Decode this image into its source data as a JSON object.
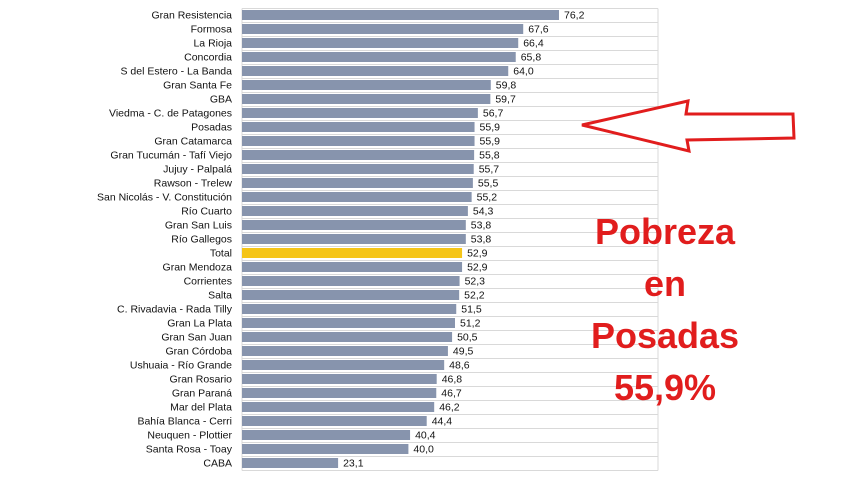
{
  "chart_data": {
    "type": "bar",
    "orientation": "horizontal",
    "categories": [
      "Gran Resistencia",
      "Formosa",
      "La Rioja",
      "Concordia",
      "S del Estero - La Banda",
      "Gran Santa Fe",
      "GBA",
      "Viedma - C. de Patagones",
      "Posadas",
      "Gran Catamarca",
      "Gran Tucumán - Tafí Viejo",
      "Jujuy - Palpalá",
      "Rawson - Trelew",
      "San Nicolás - V. Constitución",
      "Río Cuarto",
      "Gran San Luis",
      "Río Gallegos",
      "Total",
      "Gran Mendoza",
      "Corrientes",
      "Salta",
      "C. Rivadavia - Rada Tilly",
      "Gran La Plata",
      "Gran San Juan",
      "Gran Córdoba",
      "Ushuaia - Río Grande",
      "Gran Rosario",
      "Gran Paraná",
      "Mar del Plata",
      "Bahía Blanca - Cerri",
      "Neuquen - Plottier",
      "Santa Rosa - Toay",
      "CABA"
    ],
    "values": [
      76.2,
      67.6,
      66.4,
      65.8,
      64.0,
      59.8,
      59.7,
      56.7,
      55.9,
      55.9,
      55.8,
      55.7,
      55.5,
      55.2,
      54.3,
      53.8,
      53.8,
      52.9,
      52.9,
      52.3,
      52.2,
      51.5,
      51.2,
      50.5,
      49.5,
      48.6,
      46.8,
      46.7,
      46.2,
      44.4,
      40.4,
      40.0,
      23.1
    ],
    "value_labels": [
      "76,2",
      "67,6",
      "66,4",
      "65,8",
      "64,0",
      "59,8",
      "59,7",
      "56,7",
      "55,9",
      "55,9",
      "55,8",
      "55,7",
      "55,5",
      "55,2",
      "54,3",
      "53,8",
      "53,8",
      "52,9",
      "52,9",
      "52,3",
      "52,2",
      "51,5",
      "51,2",
      "50,5",
      "49,5",
      "48,6",
      "46,8",
      "46,7",
      "46,2",
      "44,4",
      "40,4",
      "40,0",
      "23,1"
    ],
    "highlight_category": "Total",
    "arrow_target": "Posadas",
    "xlim": [
      0,
      100
    ],
    "grid": true,
    "title": "",
    "xlabel": "",
    "ylabel": ""
  },
  "colors": {
    "bar": "#8794ad",
    "highlight": "#f5c518",
    "grid": "#d9d9d9",
    "annotation": "#e11d1d"
  },
  "annotation": {
    "lines": [
      "Pobreza",
      "en",
      "Posadas",
      "55,9%"
    ]
  }
}
